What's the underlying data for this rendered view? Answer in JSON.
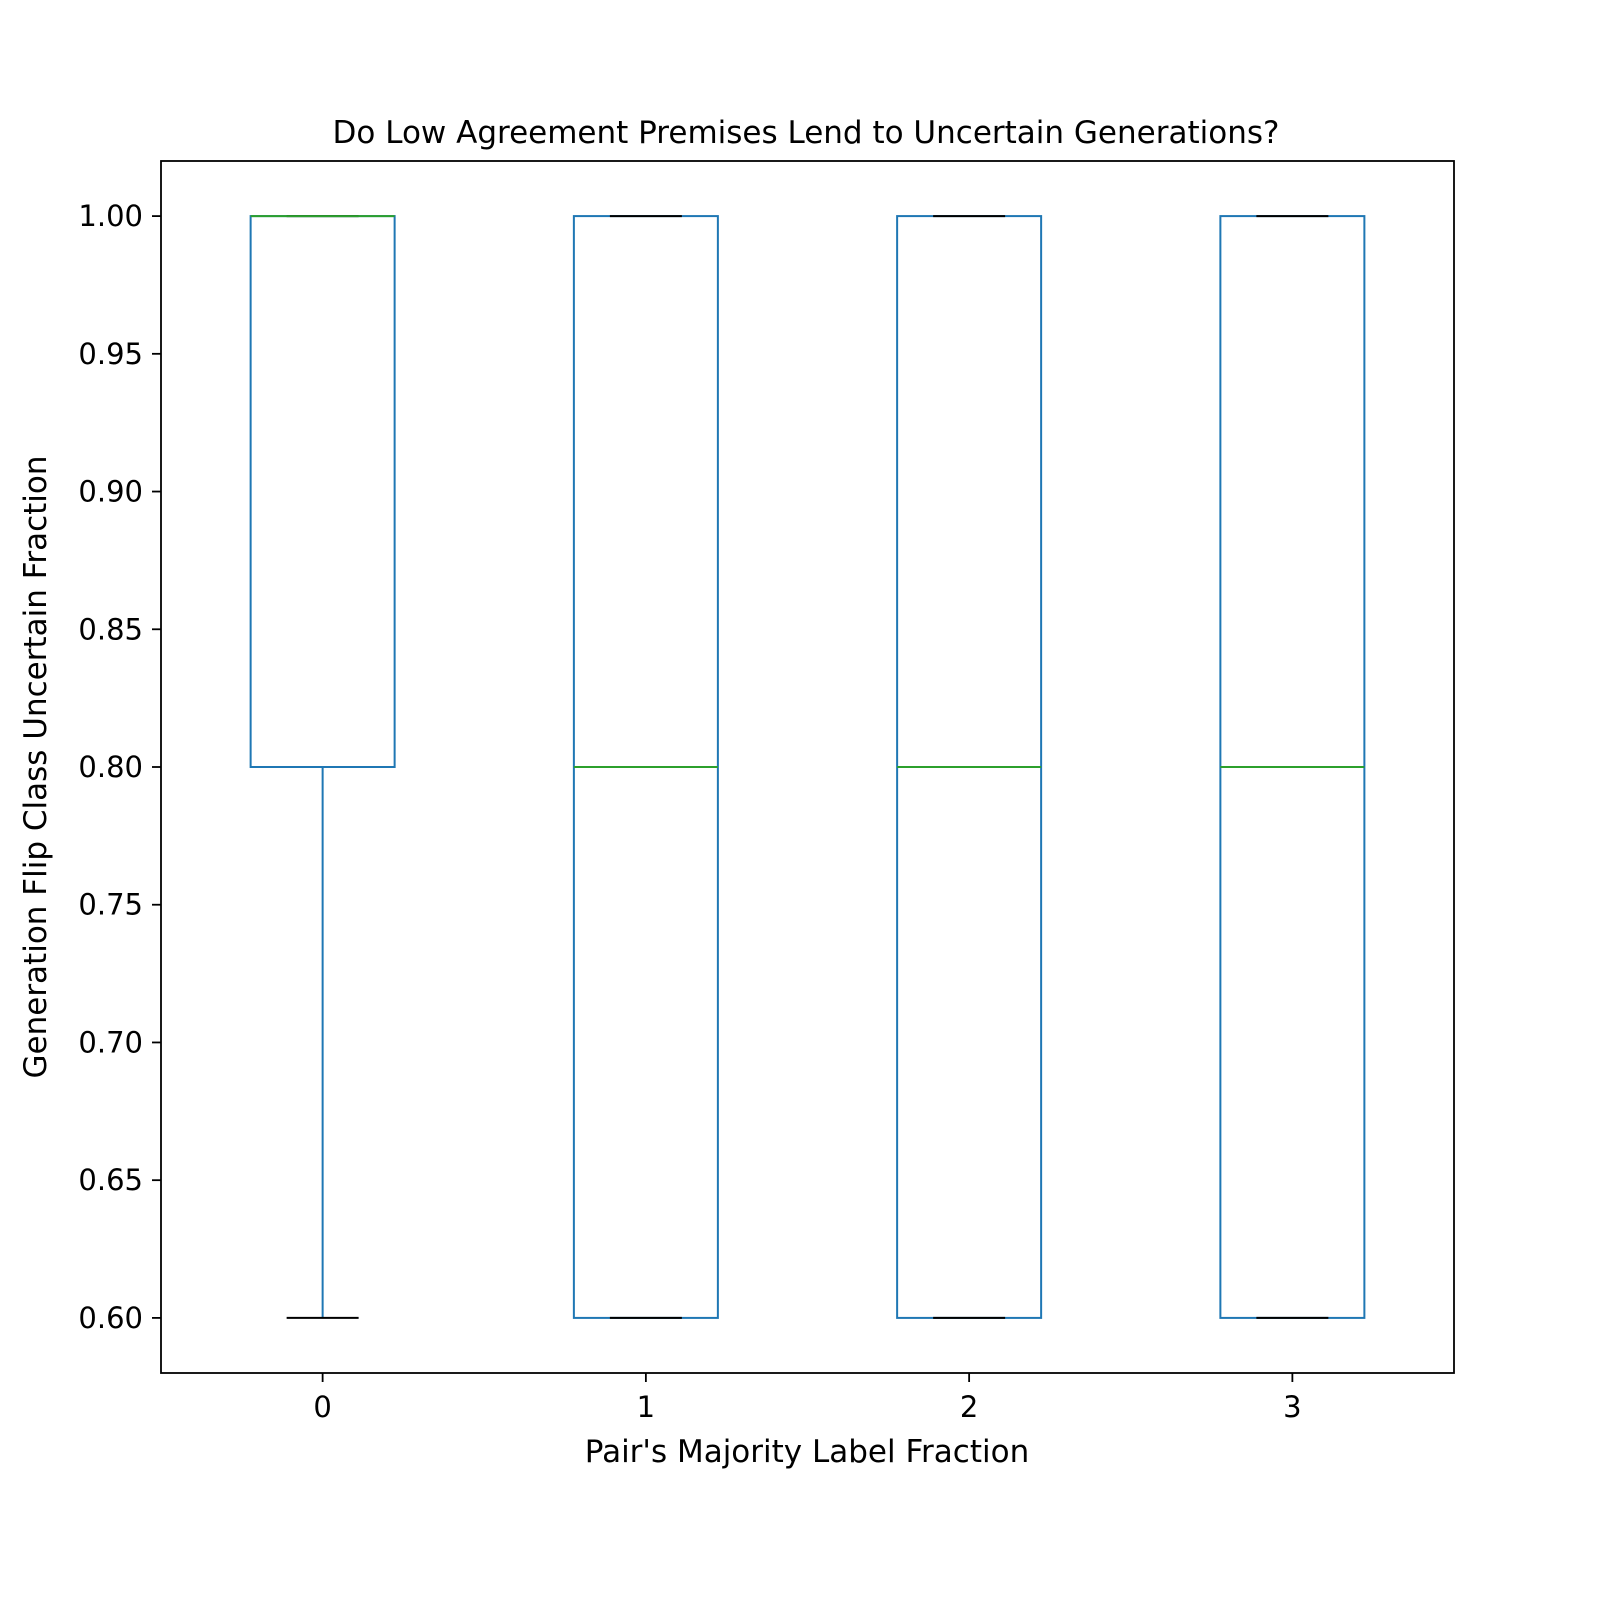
{
  "chart_data": {
    "type": "box",
    "title": "Do Low Agreement Premises Lend to Uncertain Generations?",
    "xlabel": "Pair's Majority Label Fraction",
    "ylabel": "Generation Flip Class Uncertain Fraction",
    "categories": [
      "0",
      "1",
      "2",
      "3"
    ],
    "boxes": [
      {
        "category": "0",
        "whisker_low": 0.6,
        "q1": 0.8,
        "median": 1.0,
        "q3": 1.0,
        "whisker_high": 1.0
      },
      {
        "category": "1",
        "whisker_low": 0.6,
        "q1": 0.6,
        "median": 0.8,
        "q3": 1.0,
        "whisker_high": 1.0
      },
      {
        "category": "2",
        "whisker_low": 0.6,
        "q1": 0.6,
        "median": 0.8,
        "q3": 1.0,
        "whisker_high": 1.0
      },
      {
        "category": "3",
        "whisker_low": 0.6,
        "q1": 0.6,
        "median": 0.8,
        "q3": 1.0,
        "whisker_high": 1.0
      }
    ],
    "ylim": [
      0.58,
      1.02
    ],
    "yticks": [
      "0.60",
      "0.65",
      "0.70",
      "0.75",
      "0.80",
      "0.85",
      "0.90",
      "0.95",
      "1.00"
    ],
    "grid": false,
    "colors": {
      "box": "#1f77b4",
      "median": "#2ca02c",
      "whisker_cap": "#000000",
      "axes": "#000000"
    }
  }
}
